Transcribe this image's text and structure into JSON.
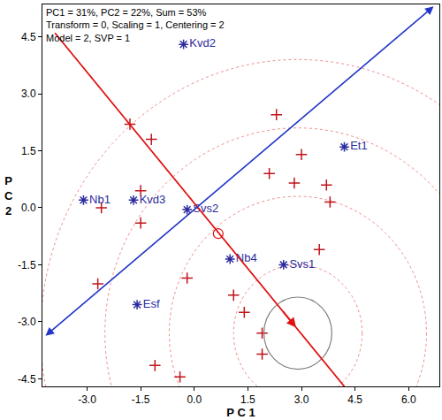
{
  "chart_data": {
    "type": "scatter",
    "info_text": [
      "PC1 = 31%, PC2 = 22%, Sum = 53%",
      "Transform = 0, Scaling = 1, Centering = 2",
      "Model = 2, SVP = 1"
    ],
    "x_label": "P C 1",
    "y_label": "P C 2",
    "xlim": [
      -4.25,
      6.86
    ],
    "ylim": [
      -4.7,
      5.35
    ],
    "xticks": [
      {
        "value": -3,
        "label": "-3.0"
      },
      {
        "value": -1.5,
        "label": "-1.5"
      },
      {
        "value": 0,
        "label": "0.0"
      },
      {
        "value": 1.5,
        "label": "1.5"
      },
      {
        "value": 3,
        "label": "3.0"
      },
      {
        "value": 4.5,
        "label": "4.5"
      },
      {
        "value": 6,
        "label": "6.0"
      }
    ],
    "yticks": [
      {
        "value": -4.5,
        "label": "-4.5"
      },
      {
        "value": -3,
        "label": "-3.0"
      },
      {
        "value": -1.5,
        "label": "-1.5"
      },
      {
        "value": 0,
        "label": "0.0"
      },
      {
        "value": 1.5,
        "label": "1.5"
      },
      {
        "value": 3,
        "label": "3.0"
      },
      {
        "value": 4.5,
        "label": "4.5"
      }
    ],
    "grid": false,
    "series": [
      {
        "color": "#c0141c",
        "marker": "cross",
        "x": [
          -1.8,
          -1.2,
          -1.5,
          -1.5,
          -2.6,
          -2.7,
          2.3,
          3.0,
          2.1,
          2.8,
          3.7,
          3.8,
          3.5,
          -0.2,
          1.1,
          1.4,
          1.9,
          1.9,
          -1.1,
          -0.4
        ],
        "y": [
          2.2,
          1.8,
          0.45,
          -0.4,
          0.0,
          -2.0,
          2.45,
          1.4,
          0.9,
          0.65,
          0.6,
          0.15,
          -1.1,
          -1.85,
          -2.3,
          -2.75,
          -3.3,
          -3.85,
          -4.15,
          -4.45
        ]
      },
      {
        "color": "#2b2b9e",
        "marker": "asterisk",
        "labels": [
          "Kvd2",
          "Et1",
          "Nb1",
          "Kvd3",
          "Svs2",
          "Nb4",
          "Svs1",
          "Esf"
        ],
        "x": [
          -0.3,
          4.2,
          -3.1,
          -1.7,
          -0.2,
          1.0,
          2.5,
          -1.6
        ],
        "y": [
          4.3,
          1.6,
          0.2,
          0.2,
          -0.05,
          -1.35,
          -1.5,
          -2.55
        ]
      }
    ],
    "aec_lines": [
      {
        "color": "#2236c8",
        "from": [
          -4.2,
          -3.4
        ],
        "to": [
          6.7,
          5.3
        ],
        "arrow": "both"
      },
      {
        "color": "#e01010",
        "from": [
          -3.9,
          4.6
        ],
        "to": [
          4.2,
          -4.7
        ],
        "arrow_at": [
          2.85,
          -3.15
        ]
      }
    ],
    "average_environment": [
      0.67,
      -0.68
    ],
    "ideal_point": {
      "center": [
        2.9,
        -3.3
      ],
      "radius": 0.95
    },
    "concentric_radii": [
      1.8,
      3.6,
      5.4,
      7.2
    ]
  }
}
